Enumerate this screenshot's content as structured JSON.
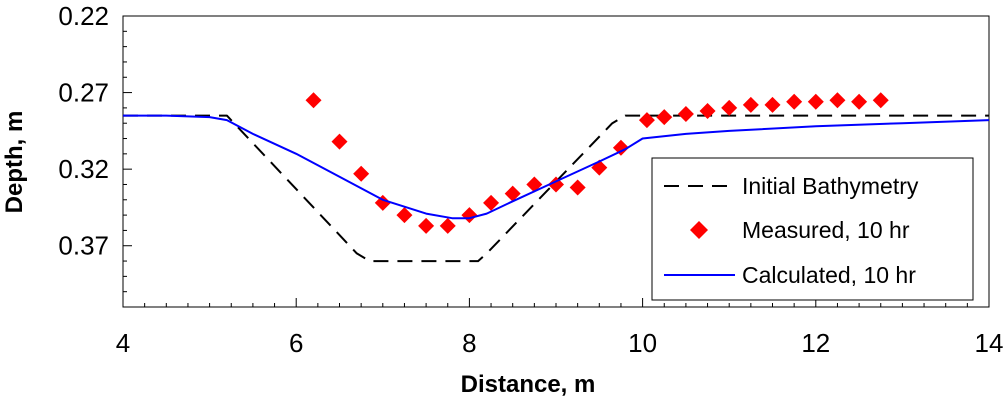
{
  "chart_data": {
    "type": "line",
    "xlabel": "Distance, m",
    "ylabel": "Depth, m",
    "xlim": [
      4,
      14
    ],
    "ylim": [
      0.22,
      0.41
    ],
    "y_reversed": true,
    "x_ticks": [
      "4",
      "6",
      "8",
      "10",
      "12",
      "14"
    ],
    "y_ticks": [
      "0.22",
      "0.27",
      "0.32",
      "0.37"
    ],
    "grid": false,
    "legend_position": "bottom-right",
    "series": [
      {
        "name": "Initial Bathymetry",
        "style": "dashed-line",
        "color": "#000000",
        "x": [
          4.0,
          5.2,
          6.7,
          6.85,
          8.1,
          8.2,
          9.65,
          9.8,
          14.0
        ],
        "y": [
          0.285,
          0.285,
          0.375,
          0.38,
          0.38,
          0.375,
          0.29,
          0.285,
          0.285
        ]
      },
      {
        "name": "Measured, 10 hr",
        "style": "markers",
        "marker": "diamond",
        "color": "#ff0000",
        "x": [
          6.2,
          6.5,
          6.75,
          7.0,
          7.25,
          7.5,
          7.75,
          8.0,
          8.25,
          8.5,
          8.75,
          9.0,
          9.25,
          9.5,
          9.75,
          10.05,
          10.25,
          10.5,
          10.75,
          11.0,
          11.25,
          11.5,
          11.75,
          12.0,
          12.25,
          12.5,
          12.75
        ],
        "y": [
          0.275,
          0.302,
          0.323,
          0.342,
          0.35,
          0.357,
          0.357,
          0.35,
          0.342,
          0.336,
          0.33,
          0.33,
          0.332,
          0.319,
          0.306,
          0.288,
          0.286,
          0.284,
          0.282,
          0.28,
          0.278,
          0.278,
          0.276,
          0.276,
          0.275,
          0.276,
          0.275
        ]
      },
      {
        "name": "Calculated, 10 hr",
        "style": "solid-line",
        "color": "#0000ff",
        "x": [
          4.0,
          4.5,
          5.0,
          5.2,
          5.5,
          6.0,
          6.5,
          7.0,
          7.5,
          7.8,
          8.0,
          8.2,
          8.5,
          9.0,
          9.5,
          9.8,
          10.0,
          10.5,
          11.0,
          12.0,
          13.0,
          14.0
        ],
        "y": [
          0.285,
          0.285,
          0.286,
          0.288,
          0.297,
          0.31,
          0.325,
          0.34,
          0.349,
          0.352,
          0.352,
          0.349,
          0.341,
          0.328,
          0.315,
          0.307,
          0.3,
          0.297,
          0.295,
          0.292,
          0.29,
          0.288
        ]
      }
    ]
  }
}
